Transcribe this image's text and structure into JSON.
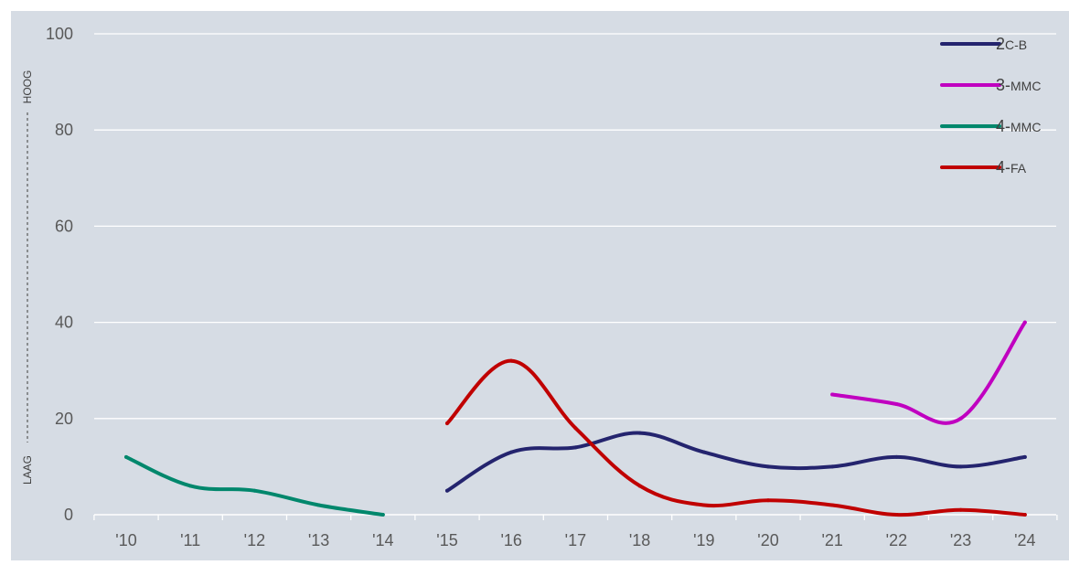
{
  "chart_data": {
    "type": "line",
    "title": "",
    "xlabel": "",
    "ylabel": "",
    "ylim": [
      0,
      100
    ],
    "yticks": [
      "0",
      "20",
      "40",
      "60",
      "80",
      "100"
    ],
    "y_scale_labels": {
      "low": "LAAG",
      "high": "HOOG"
    },
    "categories": [
      "'10",
      "'11",
      "'12",
      "'13",
      "'14",
      "'15",
      "'16",
      "'17",
      "'18",
      "'19",
      "'20",
      "'21",
      "'22",
      "'23",
      "'24"
    ],
    "grid": true,
    "legend_position": "top-right",
    "background": "#d6dce4",
    "series": [
      {
        "name": "2C-B",
        "name_main": "2",
        "name_small": "C-B",
        "color": "#24246e",
        "values": [
          null,
          null,
          null,
          null,
          null,
          5,
          13,
          14,
          17,
          13,
          10,
          10,
          12,
          10,
          12
        ]
      },
      {
        "name": "3-MMC",
        "name_main": "3-",
        "name_small": "MMC",
        "color": "#c000c0",
        "values": [
          null,
          null,
          null,
          null,
          null,
          null,
          null,
          null,
          null,
          null,
          null,
          25,
          23,
          20,
          40
        ]
      },
      {
        "name": "4-MMC",
        "name_main": "4-",
        "name_small": "MMC",
        "color": "#00876c",
        "values": [
          12,
          6,
          5,
          2,
          0,
          null,
          null,
          null,
          null,
          null,
          null,
          null,
          null,
          null,
          null
        ]
      },
      {
        "name": "4-FA",
        "name_main": "4-",
        "name_small": "FA",
        "color": "#c00000",
        "values": [
          null,
          null,
          null,
          null,
          null,
          19,
          32,
          18,
          6,
          2,
          3,
          2,
          0,
          1,
          0
        ]
      }
    ]
  }
}
